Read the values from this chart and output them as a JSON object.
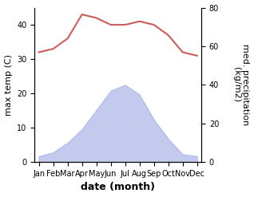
{
  "months": [
    "Jan",
    "Feb",
    "Mar",
    "Apr",
    "May",
    "Jun",
    "Jul",
    "Aug",
    "Sep",
    "Oct",
    "Nov",
    "Dec"
  ],
  "month_indices": [
    0,
    1,
    2,
    3,
    4,
    5,
    6,
    7,
    8,
    9,
    10,
    11
  ],
  "temperature": [
    32,
    33,
    36,
    43,
    42,
    40,
    40,
    41,
    40,
    37,
    32,
    31
  ],
  "precipitation": [
    3,
    5,
    10,
    17,
    27,
    37,
    40,
    35,
    22,
    12,
    4,
    3
  ],
  "temp_color": "#cd5c5c",
  "fill_color": "#aab4e8",
  "fill_alpha": 0.7,
  "temp_ylim": [
    0,
    45
  ],
  "precip_ylim": [
    0,
    80
  ],
  "xlabel": "date (month)",
  "ylabel_left": "max temp (C)",
  "ylabel_right": "med. precipitation\n(kg/m2)",
  "temp_yticks": [
    0,
    10,
    20,
    30,
    40
  ],
  "precip_yticks": [
    0,
    20,
    40,
    60,
    80
  ],
  "label_fontsize": 8,
  "tick_fontsize": 7,
  "xlabel_fontsize": 9,
  "xlabel_fontweight": "bold",
  "linewidth": 1.5
}
